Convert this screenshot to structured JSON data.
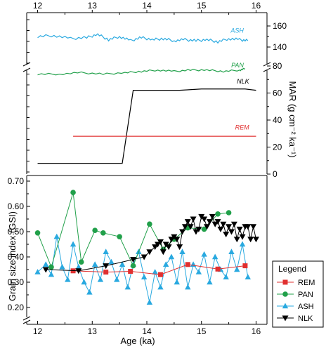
{
  "chart_data": [
    {
      "type": "line",
      "panel": "upper",
      "xlabel_top_ticks": [
        "12",
        "13",
        "14",
        "15",
        "16"
      ],
      "ylabel": "MAR (g cm⁻² ka⁻¹)",
      "ylabel_plain": "MAR (g cm-2 ka-1)",
      "right_ticks_upper": [
        "160",
        "140"
      ],
      "right_ticks_lower": [
        "80",
        "60",
        "40",
        "20",
        "0"
      ],
      "axis_break": "between 80 and 140",
      "series": [
        {
          "name": "ASH",
          "color": "#29a9e0",
          "label_pos": [
            15.8,
            151
          ],
          "x": [
            12.0,
            12.3,
            12.6,
            12.9,
            13.1,
            13.3,
            13.5,
            13.7,
            13.9,
            14.1,
            14.3,
            14.5,
            14.7,
            14.9,
            15.1,
            15.3,
            15.5,
            15.7,
            15.85
          ],
          "y": [
            150,
            151,
            148,
            149,
            152,
            147,
            150,
            146,
            149,
            147,
            148,
            146,
            147,
            146,
            147,
            145,
            148,
            147,
            146
          ]
        },
        {
          "name": "PAN",
          "color": "#21a04a",
          "label_pos": [
            15.8,
            77
          ],
          "x": [
            12.0,
            12.4,
            12.8,
            13.2,
            13.6,
            13.9,
            14.2,
            14.5,
            14.8,
            15.1,
            15.4,
            15.7,
            15.8
          ],
          "y": [
            74,
            74,
            75,
            74,
            75,
            76,
            77,
            76,
            77,
            77,
            76,
            77,
            78
          ]
        },
        {
          "name": "NLK",
          "color": "#000000",
          "label_pos": [
            15.9,
            65
          ],
          "x": [
            12.0,
            12.4,
            12.8,
            13.2,
            13.5,
            13.55,
            13.75,
            14.2,
            14.6,
            15.0,
            15.4,
            15.8,
            16.0
          ],
          "y": [
            8,
            8,
            8,
            8,
            8,
            8,
            62,
            62,
            62,
            63,
            63,
            63,
            62
          ]
        },
        {
          "name": "REM",
          "color": "#e03030",
          "label_pos": [
            15.9,
            31
          ],
          "x": [
            12.65,
            13.5,
            14.5,
            15.5,
            16.0
          ],
          "y": [
            28,
            28,
            28,
            28,
            28
          ]
        }
      ]
    },
    {
      "type": "line",
      "panel": "lower",
      "xlabel": "Age (ka)",
      "ylabel": "Grain size index (GSI)",
      "y_ticks": [
        "0.20",
        "0.30",
        "0.40",
        "0.50",
        "0.60",
        "0.70"
      ],
      "x_ticks": [
        "12",
        "13",
        "14",
        "15",
        "16"
      ],
      "ylim": [
        0.17,
        0.71
      ],
      "xlim": [
        11.8,
        16.2
      ],
      "legend": {
        "title": "Legend",
        "placement": "outside-right"
      },
      "series": [
        {
          "name": "REM",
          "color": "#e03030",
          "marker": "square",
          "x": [
            12.65,
            13.25,
            13.7,
            14.25,
            14.75,
            15.3,
            15.8
          ],
          "y": [
            0.345,
            0.34,
            0.343,
            0.33,
            0.37,
            0.352,
            0.365
          ]
        },
        {
          "name": "PAN",
          "color": "#21a04a",
          "marker": "circle",
          "x": [
            12.0,
            12.25,
            12.65,
            12.8,
            13.05,
            13.2,
            13.5,
            13.75,
            14.05,
            14.3,
            14.5,
            14.75,
            15.05,
            15.3,
            15.5
          ],
          "y": [
            0.495,
            0.36,
            0.655,
            0.38,
            0.505,
            0.495,
            0.48,
            0.365,
            0.53,
            0.43,
            0.47,
            0.515,
            0.51,
            0.57,
            0.575
          ]
        },
        {
          "name": "ASH",
          "color": "#29a9e0",
          "marker": "triangle-up",
          "x": [
            12.0,
            12.15,
            12.25,
            12.35,
            12.45,
            12.55,
            12.65,
            12.75,
            12.85,
            12.95,
            13.05,
            13.15,
            13.25,
            13.35,
            13.45,
            13.55,
            13.65,
            13.75,
            13.85,
            13.95,
            14.05,
            14.15,
            14.25,
            14.35,
            14.45,
            14.55,
            14.65,
            14.75,
            14.85,
            14.95,
            15.05,
            15.15,
            15.25,
            15.35,
            15.45,
            15.55,
            15.65,
            15.75,
            15.85
          ],
          "y": [
            0.34,
            0.37,
            0.33,
            0.48,
            0.36,
            0.31,
            0.45,
            0.36,
            0.3,
            0.26,
            0.37,
            0.31,
            0.42,
            0.38,
            0.31,
            0.37,
            0.28,
            0.37,
            0.42,
            0.32,
            0.22,
            0.34,
            0.28,
            0.37,
            0.4,
            0.3,
            0.42,
            0.28,
            0.37,
            0.34,
            0.41,
            0.3,
            0.4,
            0.35,
            0.32,
            0.42,
            0.35,
            0.45,
            0.32
          ]
        },
        {
          "name": "NLK",
          "color": "#000000",
          "marker": "triangle-down",
          "x": [
            12.15,
            12.75,
            13.25,
            13.75,
            13.95,
            14.05,
            14.15,
            14.2,
            14.25,
            14.3,
            14.35,
            14.4,
            14.45,
            14.5,
            14.55,
            14.6,
            14.65,
            14.7,
            14.75,
            14.8,
            14.85,
            14.9,
            14.95,
            15.0,
            15.05,
            15.1,
            15.15,
            15.2,
            15.25,
            15.3,
            15.35,
            15.4,
            15.45,
            15.5,
            15.55,
            15.6,
            15.65,
            15.7,
            15.75,
            15.8,
            15.85,
            15.9,
            15.95,
            16.0
          ],
          "y": [
            0.35,
            0.345,
            0.365,
            0.39,
            0.4,
            0.42,
            0.44,
            0.45,
            0.46,
            0.42,
            0.45,
            0.44,
            0.47,
            0.48,
            0.47,
            0.44,
            0.5,
            0.52,
            0.54,
            0.52,
            0.55,
            0.5,
            0.51,
            0.56,
            0.55,
            0.52,
            0.54,
            0.56,
            0.53,
            0.54,
            0.51,
            0.53,
            0.49,
            0.52,
            0.5,
            0.53,
            0.47,
            0.51,
            0.48,
            0.52,
            0.52,
            0.47,
            0.52,
            0.47
          ]
        }
      ]
    }
  ]
}
